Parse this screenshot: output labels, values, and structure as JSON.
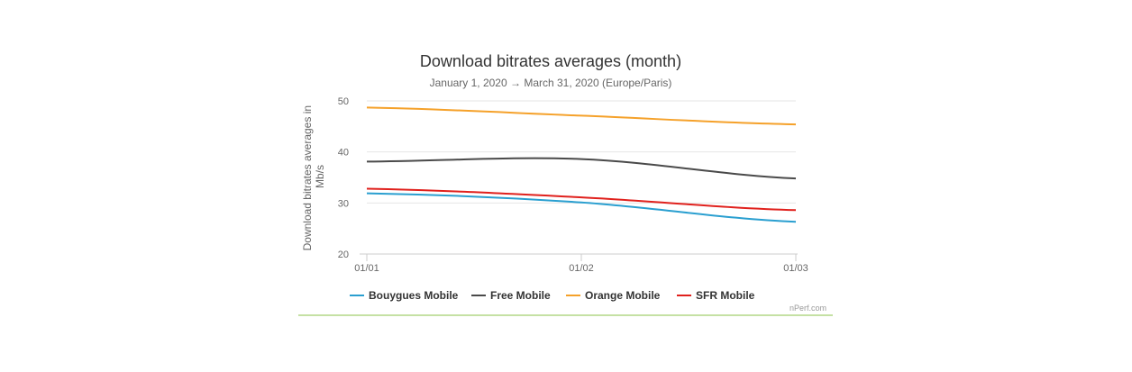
{
  "chart_data": {
    "type": "line",
    "title": "Download bitrates averages (month)",
    "subtitle": "January 1, 2020 → March 31, 2020 (Europe/Paris)",
    "ylabel": "Download bitrates averages in Mb/s",
    "xlabel": "",
    "categories": [
      "01/01",
      "01/02",
      "01/03"
    ],
    "y_ticks": [
      20,
      30,
      40,
      50
    ],
    "ylim": [
      20,
      50
    ],
    "grid": true,
    "legend_position": "bottom",
    "credit": "nPerf.com",
    "series": [
      {
        "name": "Bouygues Mobile",
        "color": "#2a9fd0",
        "values": [
          31.9,
          30.1,
          26.3
        ]
      },
      {
        "name": "Free Mobile",
        "color": "#4a4a4a",
        "values": [
          38.1,
          38.6,
          34.8
        ]
      },
      {
        "name": "Orange Mobile",
        "color": "#f5a12a",
        "values": [
          48.7,
          47.1,
          45.4
        ]
      },
      {
        "name": "SFR Mobile",
        "color": "#e0211d",
        "values": [
          32.8,
          31.1,
          28.6
        ]
      }
    ]
  }
}
